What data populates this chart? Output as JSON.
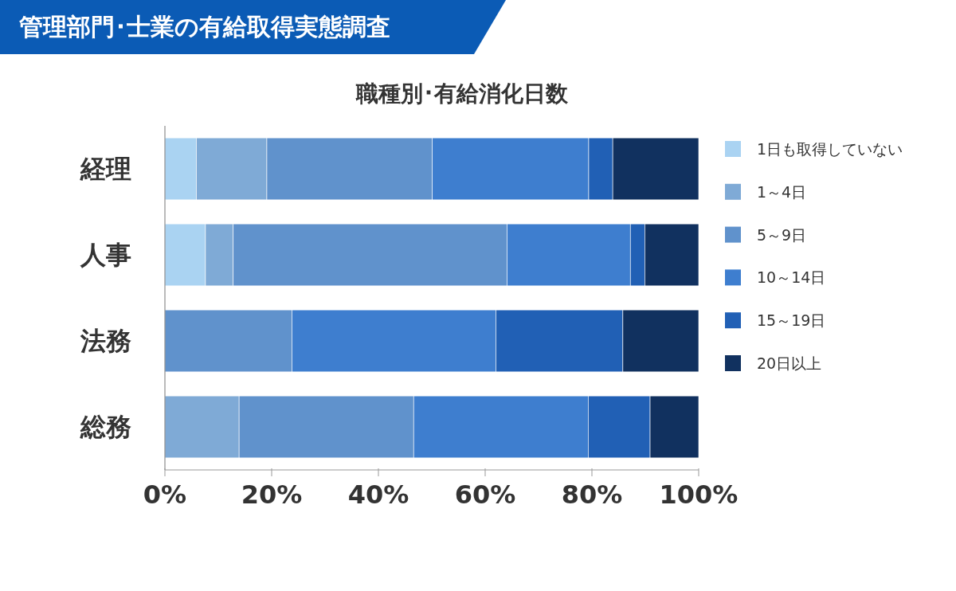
{
  "chart_data": {
    "type": "bar",
    "orientation": "horizontal",
    "stacked": true,
    "title": "管理部門･士業の有給取得実態調査",
    "subtitle": "職種別･有給消化日数",
    "categories": [
      "経理",
      "人事",
      "法務",
      "総務"
    ],
    "series": [
      {
        "name": "1日も取得していない",
        "color": "#aad3f2",
        "values": [
          5.9,
          7.6,
          0,
          0
        ]
      },
      {
        "name": "1～4日",
        "color": "#7faad6",
        "values": [
          13.2,
          5.2,
          0,
          13.9
        ]
      },
      {
        "name": "5～9日",
        "color": "#6092cc",
        "values": [
          31.0,
          51.3,
          23.8,
          32.7
        ]
      },
      {
        "name": "10～14日",
        "color": "#3e7ecf",
        "values": [
          29.3,
          23.1,
          38.2,
          32.7
        ]
      },
      {
        "name": "15～19日",
        "color": "#2160b5",
        "values": [
          4.5,
          2.7,
          23.8,
          11.6
        ]
      },
      {
        "name": "20日以上",
        "color": "#11315f",
        "values": [
          16.1,
          10.1,
          14.2,
          9.1
        ]
      }
    ],
    "xlim": [
      0,
      100
    ],
    "xticks": [
      {
        "value": 0,
        "label": "0%"
      },
      {
        "value": 20,
        "label": "20%"
      },
      {
        "value": 40,
        "label": "40%"
      },
      {
        "value": 60,
        "label": "60%"
      },
      {
        "value": 80,
        "label": "80%"
      },
      {
        "value": 100,
        "label": "100%"
      }
    ],
    "legend": "right",
    "grid": false
  }
}
